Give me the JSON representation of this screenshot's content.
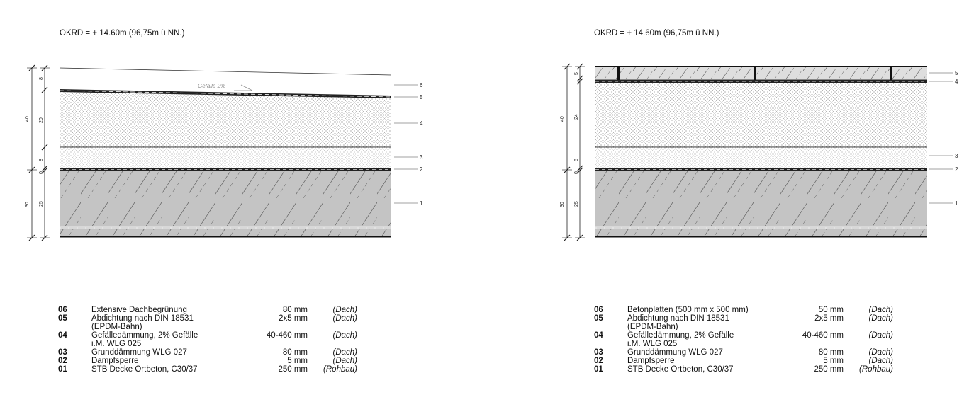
{
  "details": [
    {
      "title": "OKRD = + 14.60m (96,75m ü NN.)",
      "slope_note": "Gefälle 2%",
      "dims_outer": [
        "40",
        "30"
      ],
      "dims_inner": [
        "8",
        "20",
        "8",
        "0",
        "25"
      ],
      "layer_numbers": [
        "6",
        "5",
        "4",
        "3",
        "2",
        "1"
      ],
      "legend": [
        {
          "num": "06",
          "lines": [
            "Extensive Dachbegrünung"
          ],
          "thickness": "80 mm",
          "category": "(Dach)"
        },
        {
          "num": "05",
          "lines": [
            "Abdichtung nach DIN 18531",
            "(EPDM-Bahn)"
          ],
          "thickness": "2x5 mm",
          "category": "(Dach)"
        },
        {
          "num": "04",
          "lines": [
            "Gefälledämmung, 2% Gefälle",
            "i.M. WLG 025"
          ],
          "thickness": "40-460 mm",
          "category": "(Dach)"
        },
        {
          "num": "03",
          "lines": [
            "Grunddämmung WLG 027"
          ],
          "thickness": "80 mm",
          "category": "(Dach)"
        },
        {
          "num": "02",
          "lines": [
            "Dampfsperre"
          ],
          "thickness": "5 mm",
          "category": "(Dach)"
        },
        {
          "num": "01",
          "lines": [
            "STB Decke Ortbeton, C30/37"
          ],
          "thickness": "250 mm",
          "category": "(Rohbau)"
        }
      ]
    },
    {
      "title": "OKRD = + 14.60m (96,75m ü NN.)",
      "dims_outer": [
        "40",
        "30"
      ],
      "dims_inner": [
        "5",
        "24",
        "8",
        "0",
        "25"
      ],
      "layer_numbers": [
        "5",
        "4",
        "3",
        "2",
        "1"
      ],
      "legend": [
        {
          "num": "06",
          "lines": [
            "Betonplatten (500 mm x 500 mm)"
          ],
          "thickness": "50 mm",
          "category": "(Dach)"
        },
        {
          "num": "05",
          "lines": [
            "Abdichtung nach DIN 18531",
            "(EPDM-Bahn)"
          ],
          "thickness": "2x5 mm",
          "category": "(Dach)"
        },
        {
          "num": "04",
          "lines": [
            "Gefälledämmung, 2% Gefälle",
            "i.M. WLG 025"
          ],
          "thickness": "40-460 mm",
          "category": "(Dach)"
        },
        {
          "num": "03",
          "lines": [
            "Grunddämmung WLG 027"
          ],
          "thickness": "80 mm",
          "category": "(Dach)"
        },
        {
          "num": "02",
          "lines": [
            "Dampfsperre"
          ],
          "thickness": "5 mm",
          "category": "(Dach)"
        },
        {
          "num": "01",
          "lines": [
            "STB Decke Ortbeton, C30/37"
          ],
          "thickness": "250 mm",
          "category": "(Rohbau)"
        }
      ]
    }
  ]
}
